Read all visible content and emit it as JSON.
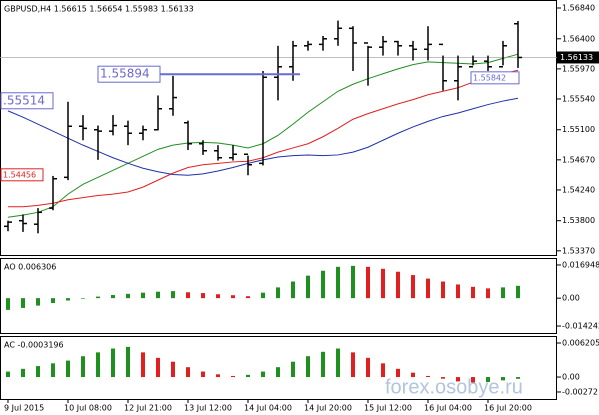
{
  "watermark": "forex.osobye.ru",
  "chart_data": [
    {
      "type": "ohlc",
      "title": "GBPUSD,H4 1.56615 1.56654 1.55983 1.56133",
      "ohlc": {
        "color": "#000000",
        "open": [
          1.5372,
          1.538,
          1.5375,
          1.5398,
          1.5442,
          1.5515,
          1.551,
          1.5508,
          1.5515,
          1.5505,
          1.551,
          1.554,
          1.552,
          1.549,
          1.548,
          1.547,
          1.5475,
          1.5462,
          1.5585,
          1.56,
          1.563,
          1.5632,
          1.564,
          1.5655,
          1.5634,
          1.5628,
          1.5636,
          1.563,
          1.5625,
          1.5632,
          1.558,
          1.56,
          1.5608,
          1.56,
          1.56615
        ],
        "high": [
          1.538,
          1.5389,
          1.5398,
          1.5444,
          1.555,
          1.5531,
          1.5516,
          1.5531,
          1.5523,
          1.5516,
          1.5559,
          1.5587,
          1.5523,
          1.5495,
          1.5488,
          1.5488,
          1.5473,
          1.5594,
          1.563,
          1.5637,
          1.5637,
          1.5644,
          1.5666,
          1.5658,
          1.563,
          1.5644,
          1.5637,
          1.5637,
          1.5658,
          1.5616,
          1.5616,
          1.5616,
          1.5616,
          1.5637,
          1.56654
        ],
        "low": [
          1.5365,
          1.5364,
          1.5362,
          1.5395,
          1.5438,
          1.5495,
          1.5467,
          1.5502,
          1.5488,
          1.5495,
          1.5509,
          1.553,
          1.5481,
          1.5474,
          1.5466,
          1.5466,
          1.5445,
          1.5459,
          1.5552,
          1.558,
          1.5623,
          1.5623,
          1.563,
          1.5594,
          1.5573,
          1.5616,
          1.5616,
          1.5609,
          1.5609,
          1.5566,
          1.5552,
          1.5602,
          1.5594,
          1.5602,
          1.55983
        ],
        "close": [
          1.5378,
          1.5376,
          1.5392,
          1.544,
          1.5515,
          1.5512,
          1.5508,
          1.5516,
          1.5505,
          1.551,
          1.554,
          1.5556,
          1.549,
          1.548,
          1.547,
          1.5475,
          1.546,
          1.5585,
          1.56,
          1.563,
          1.5632,
          1.564,
          1.5655,
          1.5634,
          1.5628,
          1.5636,
          1.563,
          1.5625,
          1.5632,
          1.558,
          1.56,
          1.5608,
          1.56,
          1.563,
          1.56133
        ]
      },
      "series": [
        {
          "color": "#1f8f1f",
          "values": [
            1.5385,
            1.5388,
            1.5392,
            1.54,
            1.5418,
            1.5432,
            1.5442,
            1.5452,
            1.5462,
            1.5472,
            1.5482,
            1.5488,
            1.5491,
            1.5492,
            1.5491,
            1.5488,
            1.5484,
            1.549,
            1.5502,
            1.5518,
            1.5535,
            1.555,
            1.5565,
            1.5575,
            1.5583,
            1.559,
            1.5597,
            1.5603,
            1.5607,
            1.5606,
            1.5605,
            1.5604,
            1.5606,
            1.5612,
            1.5618
          ]
        },
        {
          "color": "#e02020",
          "values": [
            1.54,
            1.54,
            1.5402,
            1.5405,
            1.541,
            1.5413,
            1.5416,
            1.5418,
            1.5421,
            1.5428,
            1.5438,
            1.5448,
            1.5456,
            1.546,
            1.5462,
            1.5464,
            1.5465,
            1.547,
            1.5478,
            1.5484,
            1.549,
            1.55,
            1.5512,
            1.5525,
            1.5533,
            1.554,
            1.5547,
            1.5553,
            1.556,
            1.5565,
            1.557,
            1.5578,
            1.5585,
            1.559,
            1.5595
          ]
        },
        {
          "color": "#2030a8",
          "values": [
            1.5537,
            1.5528,
            1.5518,
            1.5508,
            1.5498,
            1.5488,
            1.5479,
            1.547,
            1.5462,
            1.5455,
            1.545,
            1.5446,
            1.5445,
            1.5447,
            1.5451,
            1.5456,
            1.5462,
            1.5467,
            1.5471,
            1.5473,
            1.5474,
            1.5473,
            1.5474,
            1.5478,
            1.5485,
            1.5495,
            1.5505,
            1.5514,
            1.5522,
            1.5529,
            1.5534,
            1.554,
            1.5546,
            1.5551,
            1.5555
          ]
        }
      ],
      "last_price": 1.56133,
      "levels": [
        {
          "value": 1.55894,
          "label": "1.55894",
          "color": "#6a6ad0"
        },
        {
          "value": 1.55514,
          "label": ".55514",
          "color": "#6a6ad0"
        },
        {
          "value": 1.54456,
          "label": "1.54456",
          "color": "#e02020"
        },
        {
          "value": 1.55842,
          "label": "1.55842",
          "color": "#6a6ad0"
        }
      ],
      "ylim": [
        1.5331,
        1.5694
      ],
      "yticks": [
        {
          "value": 1.5684,
          "label": "1.56840"
        },
        {
          "value": 1.564,
          "label": "1.56400"
        },
        {
          "value": 1.5597,
          "label": "1.55970"
        },
        {
          "value": 1.5554,
          "label": "1.55540"
        },
        {
          "value": 1.551,
          "label": "1.55100"
        },
        {
          "value": 1.5467,
          "label": "1.54670"
        },
        {
          "value": 1.5424,
          "label": "1.54240"
        },
        {
          "value": 1.538,
          "label": "1.53800"
        },
        {
          "value": 1.5337,
          "label": "1.53370"
        }
      ]
    },
    {
      "type": "histogram-osc",
      "title": "AO 0.006306",
      "up_color": "#1f8f1f",
      "down_color": "#e02020",
      "values": [
        -0.006,
        -0.005,
        -0.0038,
        -0.0025,
        -0.0012,
        -0.0003,
        0.0008,
        0.0016,
        0.0022,
        0.0028,
        0.0033,
        0.0036,
        0.003,
        0.0026,
        0.002,
        0.0015,
        0.001,
        0.0028,
        0.0055,
        0.0085,
        0.0115,
        0.014,
        0.016,
        0.0165,
        0.016,
        0.015,
        0.0135,
        0.0118,
        0.01,
        0.0085,
        0.007,
        0.0058,
        0.005,
        0.0055,
        0.006306
      ],
      "ylim": [
        -0.0178,
        0.02
      ],
      "yticks": [
        0.016948,
        {
          "value": 0,
          "label": "0.00"
        },
        -0.014242
      ]
    },
    {
      "type": "histogram-osc",
      "title": "AC -0.0003196",
      "up_color": "#1f8f1f",
      "down_color": "#e02020",
      "values": [
        0.001,
        0.0015,
        0.002,
        0.0025,
        0.003,
        0.0038,
        0.0045,
        0.0052,
        0.0055,
        0.0045,
        0.0035,
        0.0028,
        0.0018,
        0.001,
        0.0005,
        0.0002,
        0.0004,
        0.001,
        0.0018,
        0.0028,
        0.0038,
        0.0046,
        0.0052,
        0.0045,
        0.0035,
        0.0025,
        0.0015,
        0.0008,
        0.0002,
        -0.0003,
        -0.0008,
        -0.001,
        -0.0009,
        -0.0006,
        -0.0003196
      ],
      "ylim": [
        -0.004,
        0.0073
      ],
      "yticks": [
        0.006205,
        {
          "value": 0,
          "label": "0.00"
        },
        -0.00272
      ],
      "categories": [
        "9 Jul 2015",
        null,
        null,
        null,
        "10 Jul 08:00",
        null,
        null,
        null,
        "12 Jul 21:00",
        null,
        null,
        null,
        "13 Jul 12:00",
        null,
        null,
        null,
        "14 Jul 04:00",
        null,
        null,
        null,
        "14 Jul 20:00",
        null,
        null,
        null,
        "15 Jul 12:00",
        null,
        null,
        null,
        "16 Jul 04:00",
        null,
        null,
        null,
        "16 Jul 20:00",
        null,
        null
      ]
    }
  ]
}
